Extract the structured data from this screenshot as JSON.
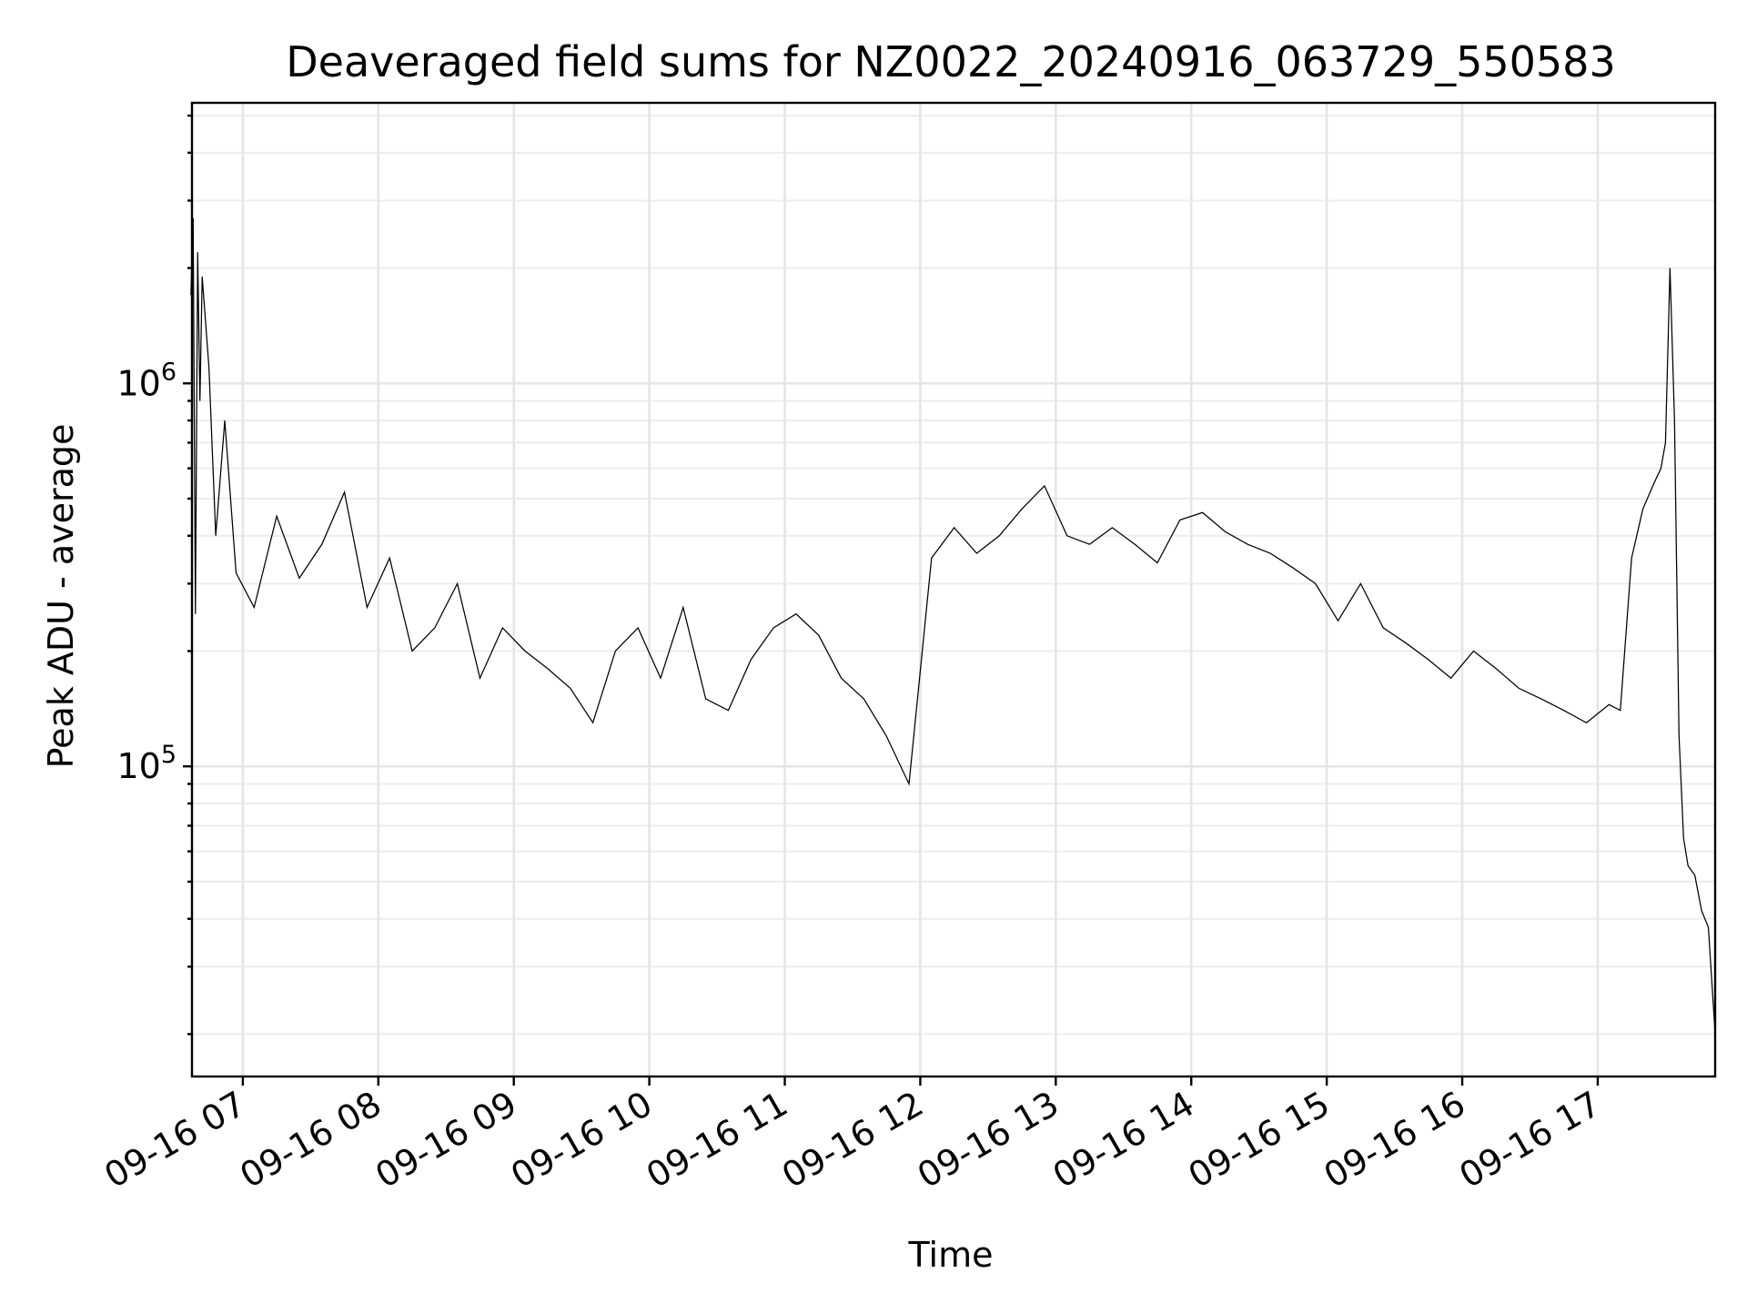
{
  "chart_data": {
    "type": "line",
    "title": "Deaveraged field sums for NZ0022_20240916_063729_550583",
    "xlabel": "Time",
    "ylabel": "Peak ADU - average",
    "yscale": "log",
    "ylim": [
      15500,
      5400000
    ],
    "xlim": [
      "2024-09-16 06:37:29",
      "2024-09-16 17:52:00"
    ],
    "grid": true,
    "legend": "none",
    "colors": {
      "line": "#000000",
      "grid": "#e5e5e5",
      "background": "#ffffff"
    },
    "x_ticks": [
      {
        "t": "2024-09-16 07:00",
        "label": "09-16 07"
      },
      {
        "t": "2024-09-16 08:00",
        "label": "09-16 08"
      },
      {
        "t": "2024-09-16 09:00",
        "label": "09-16 09"
      },
      {
        "t": "2024-09-16 10:00",
        "label": "09-16 10"
      },
      {
        "t": "2024-09-16 11:00",
        "label": "09-16 11"
      },
      {
        "t": "2024-09-16 12:00",
        "label": "09-16 12"
      },
      {
        "t": "2024-09-16 13:00",
        "label": "09-16 13"
      },
      {
        "t": "2024-09-16 14:00",
        "label": "09-16 14"
      },
      {
        "t": "2024-09-16 15:00",
        "label": "09-16 15"
      },
      {
        "t": "2024-09-16 16:00",
        "label": "09-16 16"
      },
      {
        "t": "2024-09-16 17:00",
        "label": "09-16 17"
      }
    ],
    "y_major_ticks": [
      {
        "value": 100000,
        "base": "10",
        "exp": "5"
      },
      {
        "value": 1000000,
        "base": "10",
        "exp": "6"
      }
    ],
    "series": [
      {
        "x": [
          "2024-09-16 06:37",
          "2024-09-16 06:38",
          "2024-09-16 06:39",
          "2024-09-16 06:40",
          "2024-09-16 06:41",
          "2024-09-16 06:42",
          "2024-09-16 06:45",
          "2024-09-16 06:48",
          "2024-09-16 06:52",
          "2024-09-16 06:57",
          "2024-09-16 07:05",
          "2024-09-16 07:15",
          "2024-09-16 07:25",
          "2024-09-16 07:35",
          "2024-09-16 07:45",
          "2024-09-16 07:55",
          "2024-09-16 08:05",
          "2024-09-16 08:15",
          "2024-09-16 08:25",
          "2024-09-16 08:35",
          "2024-09-16 08:45",
          "2024-09-16 08:55",
          "2024-09-16 09:05",
          "2024-09-16 09:15",
          "2024-09-16 09:25",
          "2024-09-16 09:35",
          "2024-09-16 09:45",
          "2024-09-16 09:55",
          "2024-09-16 10:05",
          "2024-09-16 10:15",
          "2024-09-16 10:25",
          "2024-09-16 10:35",
          "2024-09-16 10:45",
          "2024-09-16 10:55",
          "2024-09-16 11:05",
          "2024-09-16 11:15",
          "2024-09-16 11:25",
          "2024-09-16 11:35",
          "2024-09-16 11:45",
          "2024-09-16 11:55",
          "2024-09-16 12:05",
          "2024-09-16 12:15",
          "2024-09-16 12:25",
          "2024-09-16 12:35",
          "2024-09-16 12:45",
          "2024-09-16 12:55",
          "2024-09-16 13:05",
          "2024-09-16 13:15",
          "2024-09-16 13:25",
          "2024-09-16 13:35",
          "2024-09-16 13:45",
          "2024-09-16 13:55",
          "2024-09-16 14:05",
          "2024-09-16 14:15",
          "2024-09-16 14:25",
          "2024-09-16 14:35",
          "2024-09-16 14:45",
          "2024-09-16 14:55",
          "2024-09-16 15:05",
          "2024-09-16 15:15",
          "2024-09-16 15:25",
          "2024-09-16 15:35",
          "2024-09-16 15:45",
          "2024-09-16 15:55",
          "2024-09-16 16:05",
          "2024-09-16 16:15",
          "2024-09-16 16:25",
          "2024-09-16 16:35",
          "2024-09-16 16:45",
          "2024-09-16 16:55",
          "2024-09-16 17:05",
          "2024-09-16 17:10",
          "2024-09-16 17:15",
          "2024-09-16 17:20",
          "2024-09-16 17:25",
          "2024-09-16 17:28",
          "2024-09-16 17:30",
          "2024-09-16 17:32",
          "2024-09-16 17:34",
          "2024-09-16 17:36",
          "2024-09-16 17:38",
          "2024-09-16 17:40",
          "2024-09-16 17:43",
          "2024-09-16 17:46",
          "2024-09-16 17:49",
          "2024-09-16 17:52"
        ],
        "y": [
          1700000,
          2700000,
          250000,
          2200000,
          900000,
          1900000,
          1100000,
          400000,
          800000,
          320000,
          260000,
          450000,
          310000,
          380000,
          520000,
          260000,
          350000,
          200000,
          230000,
          300000,
          170000,
          230000,
          200000,
          180000,
          160000,
          130000,
          200000,
          230000,
          170000,
          260000,
          150000,
          140000,
          190000,
          230000,
          250000,
          220000,
          170000,
          150000,
          120000,
          90000,
          350000,
          420000,
          360000,
          400000,
          470000,
          540000,
          400000,
          380000,
          420000,
          380000,
          340000,
          440000,
          460000,
          410000,
          380000,
          360000,
          330000,
          300000,
          240000,
          300000,
          230000,
          210000,
          190000,
          170000,
          200000,
          180000,
          160000,
          150000,
          140000,
          130000,
          145000,
          140000,
          350000,
          470000,
          550000,
          600000,
          700000,
          2000000,
          800000,
          120000,
          65000,
          55000,
          52000,
          42000,
          38000,
          20000
        ]
      }
    ]
  }
}
